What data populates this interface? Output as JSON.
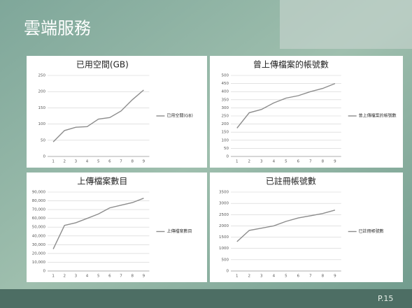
{
  "slide": {
    "title": "雲端服務",
    "page": "P.15"
  },
  "chart_data": [
    {
      "type": "line",
      "title": "已用空間(GB)",
      "categories": [
        "1",
        "2",
        "3",
        "4",
        "5",
        "6",
        "7",
        "8",
        "9"
      ],
      "series": [
        {
          "name": "已用空間(GB)",
          "color": "#8c8c8c",
          "values": [
            45,
            80,
            90,
            92,
            115,
            120,
            140,
            175,
            205
          ]
        }
      ],
      "ylim": [
        0,
        250
      ],
      "yticks": [
        0,
        50,
        100,
        150,
        200,
        250
      ],
      "grid": true
    },
    {
      "type": "line",
      "title": "曾上傳檔案的帳號數",
      "categories": [
        "1",
        "2",
        "3",
        "4",
        "5",
        "6",
        "7",
        "8",
        "9"
      ],
      "series": [
        {
          "name": "曾上傳檔案的帳號數",
          "color": "#8c8c8c",
          "values": [
            175,
            270,
            290,
            330,
            360,
            375,
            400,
            420,
            450
          ]
        }
      ],
      "ylim": [
        0,
        500
      ],
      "yticks": [
        0,
        50,
        100,
        150,
        200,
        250,
        300,
        350,
        400,
        450,
        500
      ],
      "grid": true
    },
    {
      "type": "line",
      "title": "上傳檔案數目",
      "categories": [
        "1",
        "2",
        "3",
        "4",
        "5",
        "6",
        "7",
        "8",
        "9"
      ],
      "series": [
        {
          "name": "上傳檔案數目",
          "color": "#8c8c8c",
          "values": [
            25000,
            52000,
            55000,
            60000,
            65000,
            72000,
            75000,
            78000,
            83000
          ]
        }
      ],
      "ylim": [
        0,
        90000
      ],
      "yticks": [
        0,
        {
          "value": 10000,
          "label": "10,000"
        },
        {
          "value": 20000,
          "label": "20,000"
        },
        {
          "value": 30000,
          "label": "30,000"
        },
        {
          "value": 40000,
          "label": "40,000"
        },
        {
          "value": 50000,
          "label": "50,000"
        },
        {
          "value": 60000,
          "label": "60,000"
        },
        {
          "value": 70000,
          "label": "70,000"
        },
        {
          "value": 80000,
          "label": "80,000"
        },
        {
          "value": 90000,
          "label": "90,000"
        }
      ],
      "grid": true
    },
    {
      "type": "line",
      "title": "已註冊帳號數",
      "categories": [
        "1",
        "2",
        "3",
        "4",
        "5",
        "6",
        "7",
        "8",
        "9"
      ],
      "series": [
        {
          "name": "已註冊帳號數",
          "color": "#8c8c8c",
          "values": [
            1300,
            1800,
            1900,
            2000,
            2200,
            2350,
            2450,
            2550,
            2700
          ]
        }
      ],
      "ylim": [
        0,
        3500
      ],
      "yticks": [
        0,
        500,
        1000,
        1500,
        2000,
        2500,
        3000,
        3500
      ],
      "grid": true
    }
  ]
}
